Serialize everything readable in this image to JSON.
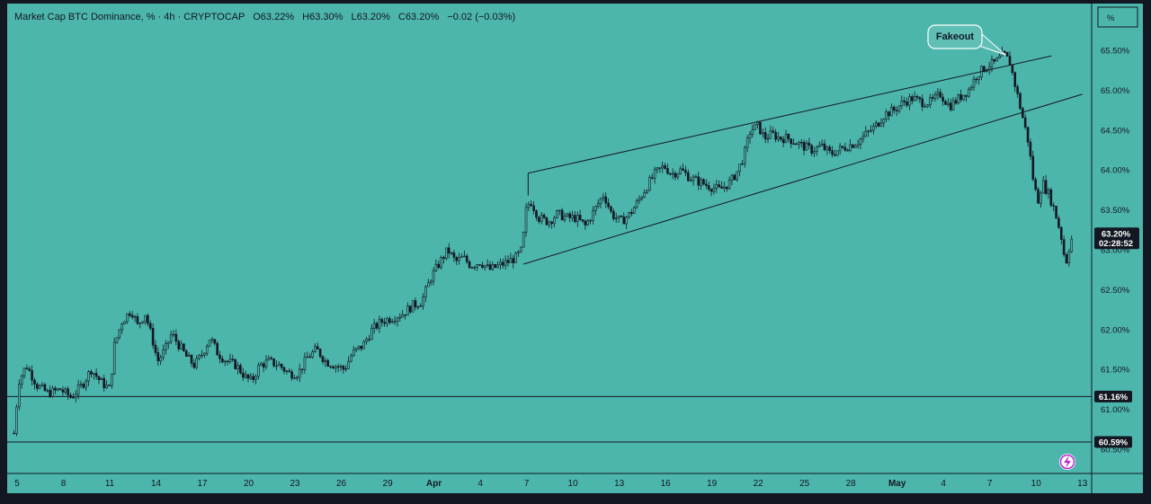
{
  "colors": {
    "background": "#4db6ac",
    "frame": "#131722",
    "candle": "#131722",
    "line": "#131722",
    "tag_bg": "#131722",
    "tag_text": "#ffffff",
    "callout_bg": "#5fbfb5",
    "logo_accent": "#c026d3"
  },
  "header": {
    "symbol": "Market Cap BTC Dominance, % · 4h · CRYPTOCAP",
    "open_label": "O",
    "open": "63.22%",
    "high_label": "H",
    "high": "63.30%",
    "low_label": "L",
    "low": "63.20%",
    "close_label": "C",
    "close": "63.20%",
    "change": "−0.02 (−0.03%)"
  },
  "scale_button": {
    "label": "%"
  },
  "logo": {
    "icon": "tradingview-lightning-icon"
  },
  "chart_data": {
    "type": "candlestick",
    "title": "Market Cap BTC Dominance, %",
    "interval": "4h",
    "ylim": [
      60.4,
      65.8
    ],
    "y_ticks": [
      "65.50%",
      "65.00%",
      "64.50%",
      "64.00%",
      "63.50%",
      "63.00%",
      "62.50%",
      "62.00%",
      "61.50%",
      "61.00%",
      "60.50%"
    ],
    "y_tick_values": [
      65.5,
      65.0,
      64.5,
      64.0,
      63.5,
      63.0,
      62.5,
      62.0,
      61.5,
      61.0,
      60.5
    ],
    "x_ticks": [
      "5",
      "8",
      "11",
      "14",
      "17",
      "20",
      "23",
      "26",
      "29",
      "Apr",
      "4",
      "7",
      "10",
      "13",
      "16",
      "19",
      "22",
      "25",
      "28",
      "May",
      "4",
      "7",
      "10",
      "13"
    ],
    "x_tick_days": [
      5,
      8,
      11,
      14,
      17,
      20,
      23,
      26,
      29,
      32,
      35,
      38,
      41,
      44,
      47,
      50,
      53,
      56,
      59,
      62,
      65,
      68,
      71,
      74
    ],
    "x_tick_bold": [
      "Apr",
      "May"
    ],
    "last_price": {
      "value": 63.2,
      "label": "63.20%",
      "countdown": "02:28:52"
    },
    "horizontal_levels": [
      {
        "value": 61.16,
        "label": "61.16%"
      },
      {
        "value": 60.59,
        "label": "60.59%"
      }
    ],
    "trendlines": [
      {
        "role": "upper-channel",
        "from": {
          "day": 38.1,
          "value": 63.96
        },
        "to": {
          "day": 72.0,
          "value": 65.43
        }
      },
      {
        "role": "lower-channel",
        "from": {
          "day": 37.8,
          "value": 62.82
        },
        "to": {
          "day": 74.0,
          "value": 64.95
        }
      },
      {
        "role": "channel-start-marker",
        "from": {
          "day": 38.1,
          "value": 63.96
        },
        "to": {
          "day": 38.1,
          "value": 63.68
        }
      }
    ],
    "annotations": [
      {
        "text": "Fakeout",
        "target": {
          "day": 69.1,
          "value": 65.45
        }
      }
    ],
    "price_path": [
      [
        4.8,
        60.7
      ],
      [
        5.1,
        61.35
      ],
      [
        5.6,
        61.55
      ],
      [
        6.3,
        61.3
      ],
      [
        7.0,
        61.2
      ],
      [
        7.8,
        61.25
      ],
      [
        8.5,
        61.15
      ],
      [
        9.2,
        61.3
      ],
      [
        9.8,
        61.5
      ],
      [
        10.4,
        61.35
      ],
      [
        11.0,
        61.25
      ],
      [
        11.3,
        61.8
      ],
      [
        11.8,
        62.1
      ],
      [
        12.4,
        62.25
      ],
      [
        12.8,
        62.05
      ],
      [
        13.3,
        62.2
      ],
      [
        13.8,
        61.85
      ],
      [
        14.1,
        61.6
      ],
      [
        14.6,
        61.75
      ],
      [
        15.0,
        61.95
      ],
      [
        15.5,
        61.8
      ],
      [
        16.0,
        61.65
      ],
      [
        16.5,
        61.55
      ],
      [
        17.0,
        61.7
      ],
      [
        17.5,
        61.9
      ],
      [
        18.0,
        61.7
      ],
      [
        18.6,
        61.6
      ],
      [
        19.2,
        61.55
      ],
      [
        19.8,
        61.4
      ],
      [
        20.2,
        61.35
      ],
      [
        20.7,
        61.55
      ],
      [
        21.3,
        61.6
      ],
      [
        22.0,
        61.55
      ],
      [
        22.6,
        61.45
      ],
      [
        23.2,
        61.45
      ],
      [
        23.8,
        61.65
      ],
      [
        24.4,
        61.75
      ],
      [
        25.0,
        61.6
      ],
      [
        25.6,
        61.55
      ],
      [
        26.2,
        61.5
      ],
      [
        26.7,
        61.7
      ],
      [
        27.4,
        61.8
      ],
      [
        28.0,
        62.0
      ],
      [
        28.6,
        62.1
      ],
      [
        29.3,
        62.15
      ],
      [
        30.0,
        62.2
      ],
      [
        30.6,
        62.3
      ],
      [
        31.2,
        62.35
      ],
      [
        31.8,
        62.65
      ],
      [
        32.4,
        62.85
      ],
      [
        32.9,
        63.0
      ],
      [
        33.4,
        62.85
      ],
      [
        33.9,
        62.9
      ],
      [
        34.4,
        62.8
      ],
      [
        35.0,
        62.85
      ],
      [
        35.6,
        62.75
      ],
      [
        36.2,
        62.8
      ],
      [
        36.8,
        62.85
      ],
      [
        37.3,
        62.9
      ],
      [
        37.7,
        63.0
      ],
      [
        38.0,
        63.55
      ],
      [
        38.3,
        63.6
      ],
      [
        38.8,
        63.4
      ],
      [
        39.4,
        63.35
      ],
      [
        40.0,
        63.45
      ],
      [
        40.6,
        63.4
      ],
      [
        41.2,
        63.4
      ],
      [
        41.8,
        63.3
      ],
      [
        42.4,
        63.5
      ],
      [
        43.0,
        63.7
      ],
      [
        43.5,
        63.45
      ],
      [
        44.1,
        63.35
      ],
      [
        44.7,
        63.45
      ],
      [
        45.2,
        63.6
      ],
      [
        45.8,
        63.8
      ],
      [
        46.3,
        63.95
      ],
      [
        46.9,
        64.05
      ],
      [
        47.4,
        63.95
      ],
      [
        48.0,
        64.0
      ],
      [
        48.6,
        63.9
      ],
      [
        49.2,
        63.85
      ],
      [
        49.8,
        63.8
      ],
      [
        50.5,
        63.75
      ],
      [
        51.2,
        63.85
      ],
      [
        51.7,
        64.0
      ],
      [
        52.1,
        64.2
      ],
      [
        52.5,
        64.5
      ],
      [
        53.0,
        64.55
      ],
      [
        53.4,
        64.4
      ],
      [
        53.9,
        64.45
      ],
      [
        54.4,
        64.4
      ],
      [
        54.9,
        64.4
      ],
      [
        55.4,
        64.35
      ],
      [
        55.9,
        64.3
      ],
      [
        56.5,
        64.25
      ],
      [
        57.1,
        64.3
      ],
      [
        57.7,
        64.2
      ],
      [
        58.2,
        64.25
      ],
      [
        58.8,
        64.3
      ],
      [
        59.4,
        64.35
      ],
      [
        60.0,
        64.45
      ],
      [
        60.6,
        64.55
      ],
      [
        61.2,
        64.7
      ],
      [
        61.8,
        64.75
      ],
      [
        62.4,
        64.85
      ],
      [
        63.0,
        64.9
      ],
      [
        63.6,
        64.85
      ],
      [
        64.2,
        64.85
      ],
      [
        64.8,
        64.95
      ],
      [
        65.4,
        64.8
      ],
      [
        66.0,
        64.9
      ],
      [
        66.6,
        65.0
      ],
      [
        67.2,
        65.2
      ],
      [
        67.8,
        65.3
      ],
      [
        68.4,
        65.35
      ],
      [
        68.9,
        65.45
      ],
      [
        69.3,
        65.35
      ],
      [
        69.6,
        65.1
      ],
      [
        69.9,
        64.85
      ],
      [
        70.2,
        64.6
      ],
      [
        70.5,
        64.35
      ],
      [
        70.8,
        63.9
      ],
      [
        71.1,
        63.6
      ],
      [
        71.4,
        63.85
      ],
      [
        71.8,
        63.7
      ],
      [
        72.1,
        63.55
      ],
      [
        72.4,
        63.35
      ],
      [
        72.7,
        63.1
      ],
      [
        72.9,
        62.8
      ],
      [
        73.1,
        63.0
      ],
      [
        73.4,
        63.2
      ]
    ]
  }
}
